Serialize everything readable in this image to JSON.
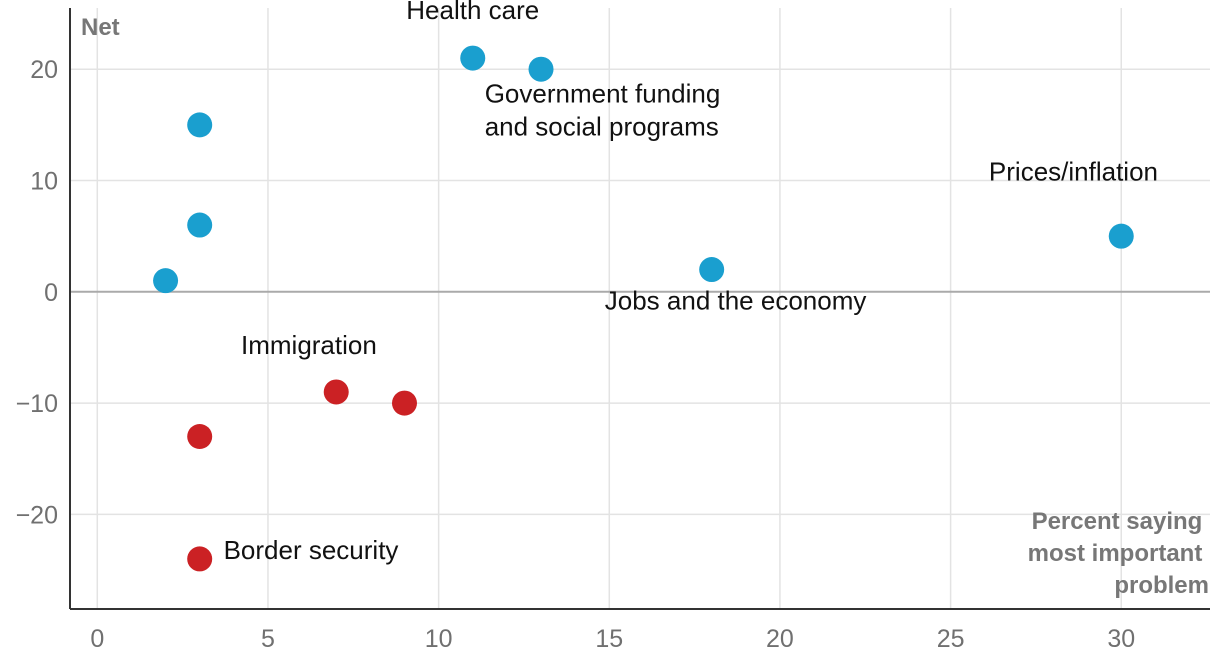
{
  "chart_data": {
    "type": "scatter",
    "title": "",
    "ylabel": "Net",
    "xlabel_lines": [
      "Percent saying",
      "most important",
      "problem"
    ],
    "xlim": [
      -0.8,
      32.6
    ],
    "ylim": [
      -28.5,
      25.5
    ],
    "x_ticks": [
      0,
      5,
      10,
      15,
      20,
      25,
      30
    ],
    "y_ticks": [
      -20,
      -10,
      0,
      10,
      20
    ],
    "x_tick_labels": [
      "0",
      "5",
      "10",
      "15",
      "20",
      "25",
      "30"
    ],
    "y_tick_labels": [
      "−20",
      "−10",
      "0",
      "10",
      "20"
    ],
    "grid": true,
    "colors": {
      "positive": "#1a9fcf",
      "negative": "#cb2124",
      "zero_line": "#aaaaaa",
      "grid": "#e3e3e3",
      "axis": "#333333"
    },
    "points": [
      {
        "x": 11,
        "y": 21,
        "color": "positive"
      },
      {
        "x": 13,
        "y": 20,
        "color": "positive"
      },
      {
        "x": 3,
        "y": 15,
        "color": "positive"
      },
      {
        "x": 3,
        "y": 6,
        "color": "positive"
      },
      {
        "x": 2,
        "y": 1,
        "color": "positive"
      },
      {
        "x": 18,
        "y": 2,
        "color": "positive"
      },
      {
        "x": 30,
        "y": 5,
        "color": "positive"
      },
      {
        "x": 7,
        "y": -9,
        "color": "negative"
      },
      {
        "x": 9,
        "y": -10,
        "color": "negative"
      },
      {
        "x": 3,
        "y": -13,
        "color": "negative"
      },
      {
        "x": 3,
        "y": -24,
        "color": "negative"
      }
    ],
    "annotations": [
      {
        "lines": [
          "Health care"
        ],
        "x": 11,
        "y": 24.5,
        "anchor": "middle"
      },
      {
        "lines": [
          "Government funding",
          "and social programs"
        ],
        "x": 11.35,
        "y": 17,
        "anchor": "start"
      },
      {
        "lines": [
          "Prices/inflation"
        ],
        "x": 28.6,
        "y": 10,
        "anchor": "middle"
      },
      {
        "lines": [
          "Jobs and the economy"
        ],
        "x": 18.7,
        "y": -1.6,
        "anchor": "middle"
      },
      {
        "lines": [
          "Immigration"
        ],
        "x": 6.2,
        "y": -5.6,
        "anchor": "middle"
      },
      {
        "lines": [
          "Border security"
        ],
        "x": 3.7,
        "y": -24,
        "anchor": "start"
      }
    ]
  }
}
